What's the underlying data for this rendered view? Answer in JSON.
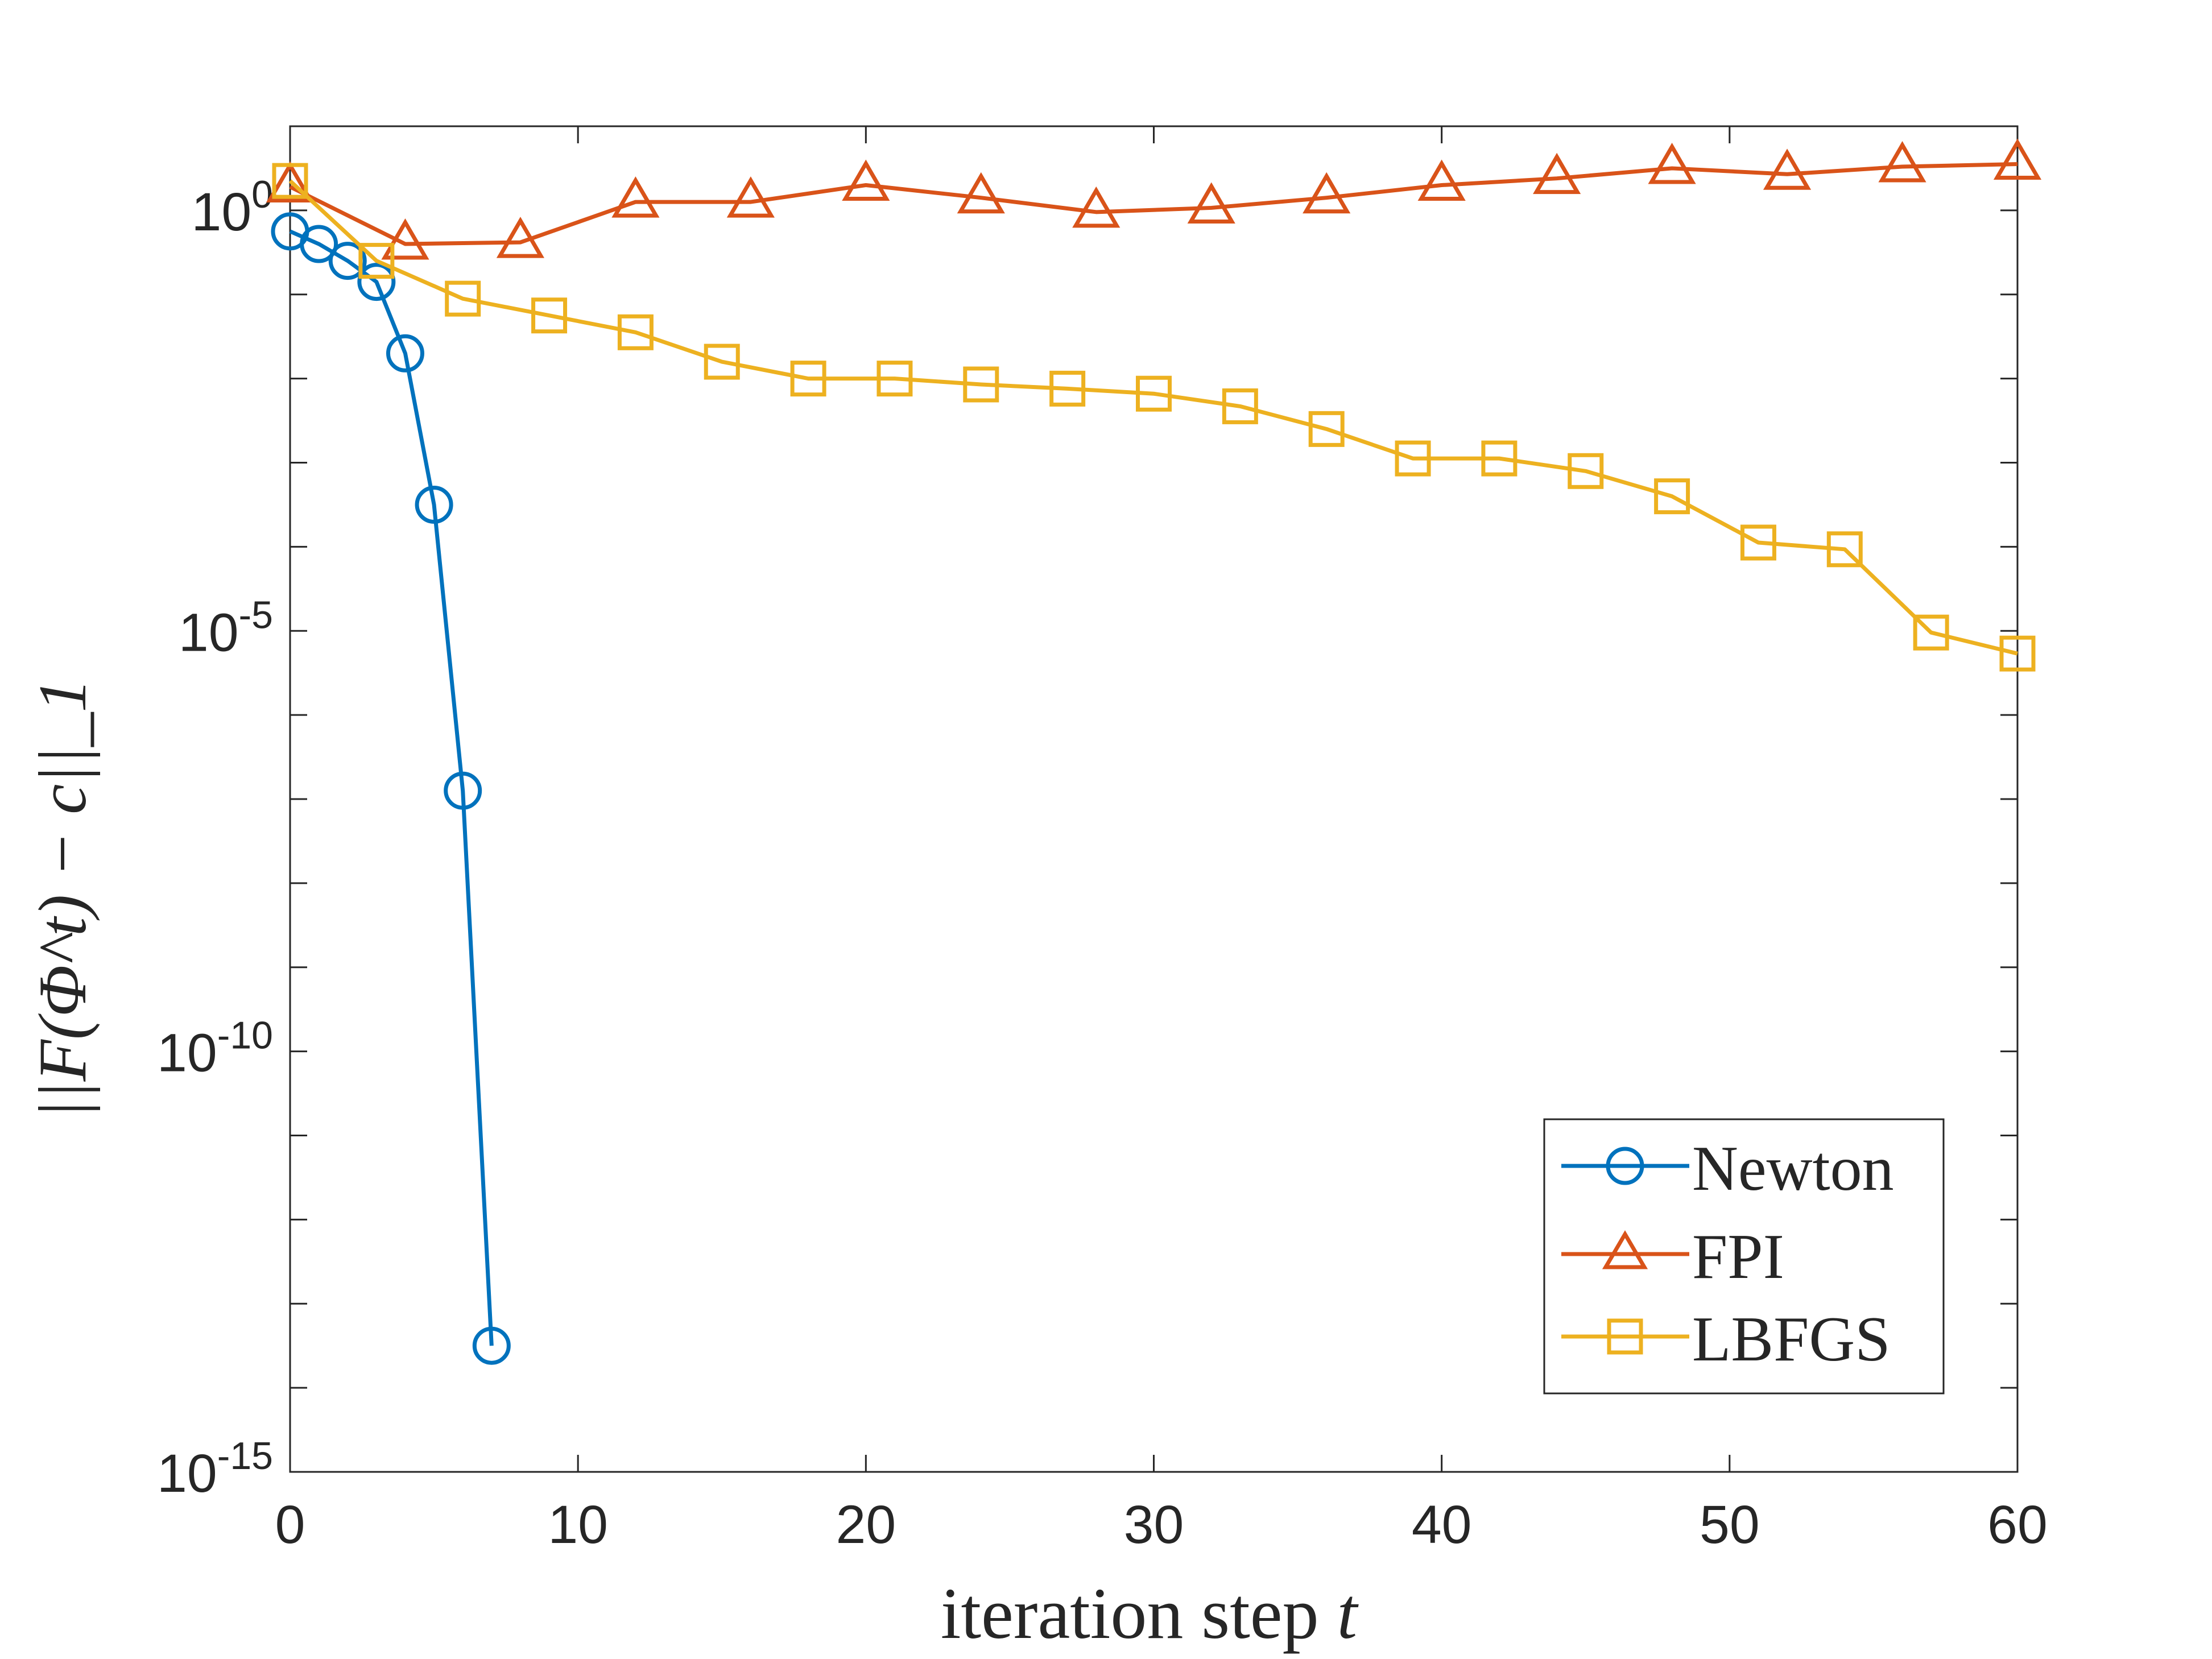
{
  "chart_data": {
    "type": "line",
    "title": "",
    "xlabel": "iteration step",
    "xlabel_var": "t",
    "ylabel": "||F(Φ^t) − c||_1",
    "xlim": [
      0,
      60
    ],
    "ylim_log10": [
      -15,
      1
    ],
    "yscale": "log",
    "grid": false,
    "legend_position": "bottom-right",
    "x_ticks": [
      0,
      10,
      20,
      30,
      40,
      50,
      60
    ],
    "y_ticks": [
      {
        "base": "10",
        "exp": "0",
        "log": 0
      },
      {
        "base": "10",
        "exp": "-5",
        "log": -5
      },
      {
        "base": "10",
        "exp": "-10",
        "log": -10
      },
      {
        "base": "10",
        "exp": "-15",
        "log": -15
      }
    ],
    "series": [
      {
        "name": "Newton",
        "color": "#0072BD",
        "marker": "circle",
        "x": [
          0,
          1,
          2,
          3,
          4,
          5,
          6,
          7
        ],
        "log10_y": [
          -0.25,
          -0.4,
          -0.6,
          -0.85,
          -1.7,
          -3.5,
          -6.9,
          -13.5
        ]
      },
      {
        "name": "FPI",
        "color": "#D95319",
        "marker": "triangle",
        "x": [
          0,
          4,
          8,
          12,
          16,
          20,
          24,
          28,
          32,
          36,
          40,
          44,
          48,
          52,
          56,
          60
        ],
        "log10_y": [
          0.28,
          -0.4,
          -0.38,
          0.1,
          0.1,
          0.3,
          0.15,
          -0.02,
          0.03,
          0.15,
          0.3,
          0.38,
          0.5,
          0.43,
          0.52,
          0.55
        ]
      },
      {
        "name": "LBFGS",
        "color": "#EDB120",
        "marker": "square",
        "x": [
          0,
          3,
          6,
          9,
          12,
          15,
          18,
          21,
          24,
          27,
          30,
          33,
          36,
          39,
          42,
          45,
          48,
          51,
          54,
          57,
          60
        ],
        "log10_y": [
          0.35,
          -0.6,
          -1.05,
          -1.25,
          -1.45,
          -1.8,
          -2.0,
          -2.0,
          -2.07,
          -2.12,
          -2.18,
          -2.33,
          -2.6,
          -2.95,
          -2.95,
          -3.1,
          -3.4,
          -3.95,
          -4.03,
          -5.02,
          -5.27
        ]
      }
    ]
  }
}
